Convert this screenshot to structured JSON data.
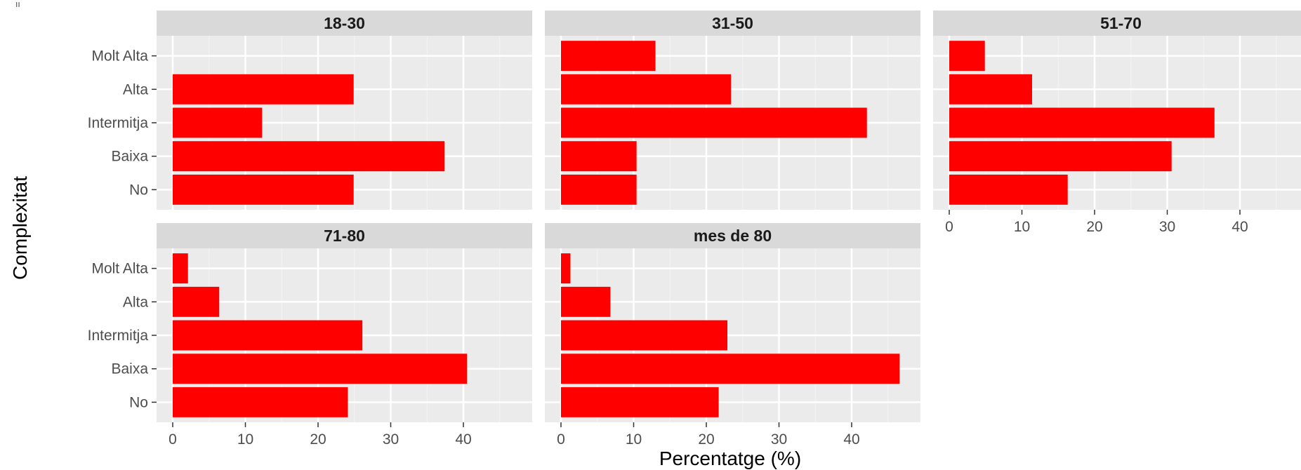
{
  "corner_mark": "ıı",
  "chart_data": {
    "type": "bar",
    "orientation": "horizontal",
    "faceted": true,
    "facet_ncol": 3,
    "xlabel": "Percentatge (%)",
    "ylabel": "Complexitat",
    "xlim": [
      0,
      48
    ],
    "xticks": [
      0,
      10,
      20,
      30,
      40
    ],
    "categories": [
      "Molt Alta",
      "Alta",
      "Intermitja",
      "Baixa",
      "No"
    ],
    "bar_color": "#ff0000",
    "panel_background": "#ebebeb",
    "strip_background": "#d9d9d9",
    "grid": true,
    "facets": [
      {
        "label": "18-30",
        "values": [
          0,
          24.9,
          12.3,
          37.4,
          24.9
        ]
      },
      {
        "label": "31-50",
        "values": [
          13.0,
          23.4,
          42.1,
          10.4,
          10.4
        ]
      },
      {
        "label": "51-70",
        "values": [
          4.9,
          11.4,
          36.5,
          30.6,
          16.3
        ]
      },
      {
        "label": "71-80",
        "values": [
          2.1,
          6.4,
          26.1,
          40.5,
          24.1
        ]
      },
      {
        "label": "mes de 80",
        "values": [
          1.3,
          6.8,
          22.9,
          46.6,
          21.7
        ]
      }
    ]
  }
}
